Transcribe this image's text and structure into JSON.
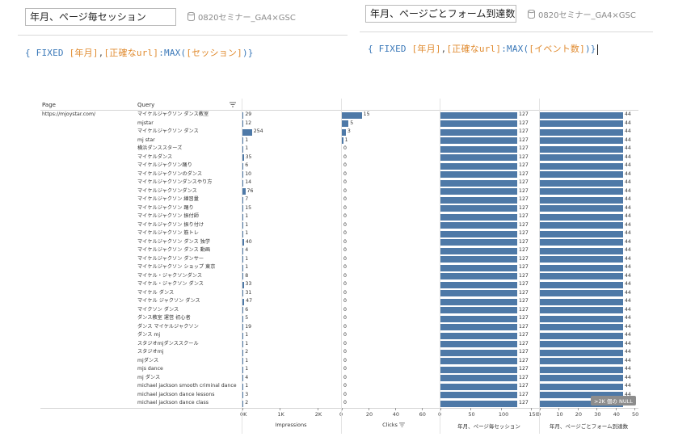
{
  "left_panel": {
    "calc_name": "年月、ページ毎セッション",
    "datasource": "0820セミナー_GA4×GSC",
    "formula_parts": [
      {
        "t": "{ FIXED ",
        "c": "blue"
      },
      {
        "t": "[年月]",
        "c": "orange"
      },
      {
        "t": ",",
        "c": "gray"
      },
      {
        "t": "[正確なurl]",
        "c": "orange"
      },
      {
        "t": ":MAX(",
        "c": "blue"
      },
      {
        "t": "[セッション]",
        "c": "orange"
      },
      {
        "t": ")}",
        "c": "blue"
      }
    ]
  },
  "right_panel": {
    "calc_name": "年月、ページごとフォーム到達数",
    "datasource": "0820セミナー_GA4×GSC",
    "formula_parts": [
      {
        "t": "{ FIXED ",
        "c": "blue"
      },
      {
        "t": "[年月]",
        "c": "orange"
      },
      {
        "t": ",",
        "c": "gray"
      },
      {
        "t": "[正確なurl]",
        "c": "orange"
      },
      {
        "t": ":MAX(",
        "c": "blue"
      },
      {
        "t": "[イベント数]",
        "c": "orange"
      },
      {
        "t": ")}",
        "c": "blue"
      }
    ]
  },
  "table": {
    "col_page": "Page",
    "col_query": "Query",
    "page_value": "https://mjoystar.com/",
    "rows": [
      {
        "q": "マイケルジャクソン ダンス教室",
        "imp": 29,
        "clk": 15,
        "ses": 127,
        "frm": 44
      },
      {
        "q": "mjstar",
        "imp": 12,
        "clk": 5,
        "ses": 127,
        "frm": 44
      },
      {
        "q": "マイケルジャクソン ダンス",
        "imp": 254,
        "clk": 3,
        "ses": 127,
        "frm": 44
      },
      {
        "q": "mj star",
        "imp": 1,
        "clk": 1,
        "ses": 127,
        "frm": 44
      },
      {
        "q": "横浜ダンススターズ",
        "imp": 1,
        "clk": 0,
        "ses": 127,
        "frm": 44
      },
      {
        "q": "マイケルダンス",
        "imp": 35,
        "clk": 0,
        "ses": 127,
        "frm": 44
      },
      {
        "q": "マイケルジャクソン踊り",
        "imp": 6,
        "clk": 0,
        "ses": 127,
        "frm": 44
      },
      {
        "q": "マイケルジャクソンのダンス",
        "imp": 10,
        "clk": 0,
        "ses": 127,
        "frm": 44
      },
      {
        "q": "マイケルジャクソンダンスやり方",
        "imp": 14,
        "clk": 0,
        "ses": 127,
        "frm": 44
      },
      {
        "q": "マイケルジャクソンダンス",
        "imp": 76,
        "clk": 0,
        "ses": 127,
        "frm": 44
      },
      {
        "q": "マイケルジャクソン 練習量",
        "imp": 7,
        "clk": 0,
        "ses": 127,
        "frm": 44
      },
      {
        "q": "マイケルジャクソン 踊り",
        "imp": 15,
        "clk": 0,
        "ses": 127,
        "frm": 44
      },
      {
        "q": "マイケルジャクソン 振付師",
        "imp": 1,
        "clk": 0,
        "ses": 127,
        "frm": 44
      },
      {
        "q": "マイケルジャクソン 振り付け",
        "imp": 1,
        "clk": 0,
        "ses": 127,
        "frm": 44
      },
      {
        "q": "マイケルジャクソン 筋トレ",
        "imp": 1,
        "clk": 0,
        "ses": 127,
        "frm": 44
      },
      {
        "q": "マイケルジャクソン ダンス 独学",
        "imp": 40,
        "clk": 0,
        "ses": 127,
        "frm": 44
      },
      {
        "q": "マイケルジャクソン ダンス 動画",
        "imp": 4,
        "clk": 0,
        "ses": 127,
        "frm": 44
      },
      {
        "q": "マイケルジャクソン ダンサー",
        "imp": 1,
        "clk": 0,
        "ses": 127,
        "frm": 44
      },
      {
        "q": "マイケルジャクソン ショップ 東京",
        "imp": 1,
        "clk": 0,
        "ses": 127,
        "frm": 44
      },
      {
        "q": "マイケル・ジャクソンダンス",
        "imp": 8,
        "clk": 0,
        "ses": 127,
        "frm": 44
      },
      {
        "q": "マイケル・ジャクソン ダンス",
        "imp": 33,
        "clk": 0,
        "ses": 127,
        "frm": 44
      },
      {
        "q": "マイケル ダンス",
        "imp": 31,
        "clk": 0,
        "ses": 127,
        "frm": 44
      },
      {
        "q": "マイケル ジャクソン ダンス",
        "imp": 47,
        "clk": 0,
        "ses": 127,
        "frm": 44
      },
      {
        "q": "マイクソン ダンス",
        "imp": 6,
        "clk": 0,
        "ses": 127,
        "frm": 44
      },
      {
        "q": "ダンス教室 運営 初心者",
        "imp": 5,
        "clk": 0,
        "ses": 127,
        "frm": 44
      },
      {
        "q": "ダンス マイケルジャクソン",
        "imp": 19,
        "clk": 0,
        "ses": 127,
        "frm": 44
      },
      {
        "q": "ダンス mj",
        "imp": 1,
        "clk": 0,
        "ses": 127,
        "frm": 44
      },
      {
        "q": "スタジオmjダンススクール",
        "imp": 1,
        "clk": 0,
        "ses": 127,
        "frm": 44
      },
      {
        "q": "スタジオmj",
        "imp": 2,
        "clk": 0,
        "ses": 127,
        "frm": 44
      },
      {
        "q": "mjダンス",
        "imp": 1,
        "clk": 0,
        "ses": 127,
        "frm": 44
      },
      {
        "q": "mjs dance",
        "imp": 1,
        "clk": 0,
        "ses": 127,
        "frm": 44
      },
      {
        "q": "mj ダンス",
        "imp": 4,
        "clk": 0,
        "ses": 127,
        "frm": 44
      },
      {
        "q": "michael jackson smooth criminal dance",
        "imp": 1,
        "clk": 0,
        "ses": 127,
        "frm": 44
      },
      {
        "q": "michael jackson dance lessons",
        "imp": 3,
        "clk": 0,
        "ses": 127,
        "frm": 44
      },
      {
        "q": "michael jackson dance class",
        "imp": 2,
        "clk": 0,
        "ses": 127,
        "frm": 44
      }
    ],
    "null_badge": ">2K 個の NULL",
    "axes": {
      "impressions": {
        "title": "Impressions",
        "ticks": [
          "0K",
          "1K",
          "2K"
        ],
        "max": 2500
      },
      "clicks": {
        "title": "Clicks",
        "ticks": [
          "0",
          "20",
          "40",
          "60"
        ],
        "max": 70
      },
      "sessions": {
        "title": "年月、ページ毎セッション",
        "ticks": [
          "0",
          "50",
          "100",
          "150"
        ],
        "max": 155
      },
      "forms": {
        "title": "年月、ページごとフォーム到達数",
        "ticks": [
          "0",
          "10",
          "20",
          "30",
          "40",
          "50"
        ],
        "max": 50
      }
    }
  }
}
